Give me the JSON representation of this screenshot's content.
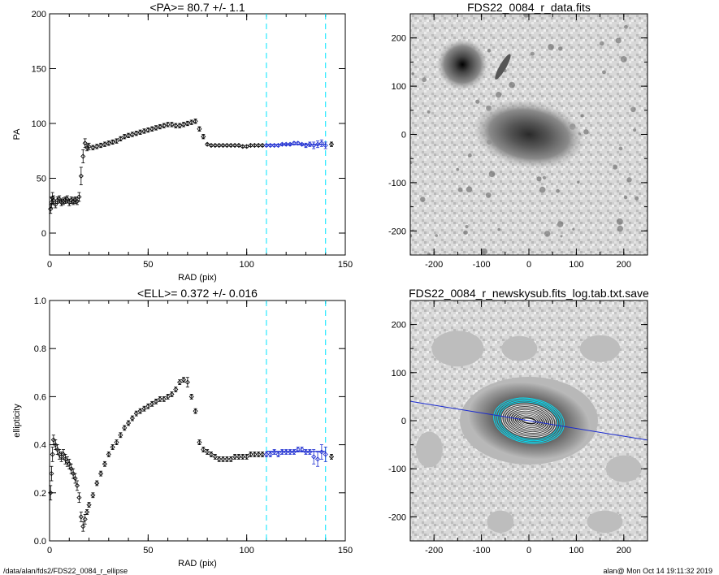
{
  "footer": {
    "left": "/data/alan/fds2/FDS22_0084_r_ellipse",
    "right": "alan@  Mon Oct 14 19:11:32 2019"
  },
  "colors": {
    "fit": "#1a2ad0",
    "marker": "#00e5ff",
    "data": "#000000"
  },
  "chart_data": [
    {
      "type": "scatter",
      "title": "<PA>=  80.7 +/-   1.1",
      "xlabel": "RAD (pix)",
      "ylabel": "PA",
      "xlim": [
        0,
        150
      ],
      "ylim": [
        -20,
        200
      ],
      "xticks": [
        0,
        50,
        100,
        150
      ],
      "yticks": [
        0,
        50,
        100,
        150,
        200
      ],
      "vlines": [
        110,
        140
      ],
      "fit": {
        "x": [
          110,
          140
        ],
        "y": [
          80.7,
          80.7
        ]
      },
      "series": [
        {
          "x": [
            0.5,
            1,
            1.5,
            2,
            3,
            4,
            5,
            6,
            7,
            8,
            9,
            10,
            11,
            12,
            13,
            14,
            15,
            16,
            17,
            18,
            19,
            20,
            22,
            24,
            26,
            28,
            30,
            32,
            34,
            36,
            38,
            40,
            42,
            44,
            46,
            48,
            50,
            52,
            54,
            56,
            58,
            60,
            62,
            64,
            66,
            68,
            70,
            72,
            74,
            76,
            78,
            80,
            82,
            84,
            86,
            88,
            90,
            92,
            94,
            96,
            98,
            100,
            102,
            104,
            106,
            108,
            110,
            112,
            114,
            116,
            118,
            120,
            122,
            124,
            126,
            128,
            130,
            132,
            134,
            136,
            138,
            140,
            143
          ],
          "y": [
            22,
            28,
            32,
            30,
            26,
            30,
            31,
            28,
            29,
            30,
            31,
            28,
            30,
            29,
            30,
            29,
            33,
            52,
            70,
            82,
            78,
            79,
            78,
            79,
            80,
            81,
            82,
            83,
            84,
            86,
            88,
            89,
            90,
            91,
            92,
            93,
            94,
            95,
            96,
            97,
            98,
            99,
            99,
            98,
            98,
            99,
            100,
            101,
            102,
            95,
            88,
            81,
            80,
            80,
            80,
            80,
            80,
            80,
            80,
            80,
            79,
            79,
            80,
            80,
            80,
            80,
            80,
            80,
            80,
            80,
            81,
            81,
            81,
            82,
            82,
            81,
            80,
            81,
            80,
            81,
            82,
            80,
            81
          ],
          "yerr": [
            4,
            5,
            5,
            4,
            3,
            3,
            3,
            3,
            3,
            3,
            3,
            3,
            3,
            3,
            3,
            3,
            4,
            8,
            6,
            4,
            3,
            3,
            2,
            2,
            2,
            2,
            2,
            2,
            2,
            2,
            2,
            2,
            2,
            2,
            2,
            2,
            2,
            2,
            2,
            2,
            2,
            2,
            2,
            2,
            2,
            2,
            2,
            2,
            2,
            2,
            2,
            1,
            1,
            1,
            1,
            1,
            1,
            1,
            1,
            1,
            1,
            1,
            1,
            1,
            1,
            1,
            1,
            1,
            1,
            1,
            1,
            1,
            1,
            1,
            1,
            1,
            2,
            2,
            3,
            3,
            3,
            3,
            2
          ]
        }
      ]
    },
    {
      "type": "scatter",
      "title": "<ELL>= 0.372 +/-  0.016",
      "xlabel": "RAD (pix)",
      "ylabel": "ellipticity",
      "xlim": [
        0,
        150
      ],
      "ylim": [
        0,
        1
      ],
      "xticks": [
        0,
        50,
        100,
        150
      ],
      "yticks": [
        0.0,
        0.2,
        0.4,
        0.6,
        0.8,
        1.0
      ],
      "vlines": [
        110,
        140
      ],
      "fit": {
        "x": [
          110,
          140
        ],
        "y": [
          0.372,
          0.372
        ]
      },
      "series": [
        {
          "x": [
            0.5,
            1,
            1.5,
            2,
            3,
            4,
            5,
            6,
            7,
            8,
            9,
            10,
            11,
            12,
            13,
            14,
            15,
            16,
            17,
            18,
            19,
            20,
            22,
            24,
            26,
            28,
            30,
            32,
            34,
            36,
            38,
            40,
            42,
            44,
            46,
            48,
            50,
            52,
            54,
            56,
            58,
            60,
            62,
            64,
            66,
            68,
            70,
            72,
            74,
            76,
            78,
            80,
            82,
            84,
            86,
            88,
            90,
            92,
            94,
            96,
            98,
            100,
            102,
            104,
            106,
            108,
            110,
            112,
            114,
            116,
            118,
            120,
            122,
            124,
            126,
            128,
            130,
            132,
            134,
            136,
            138,
            140,
            143
          ],
          "y": [
            0.2,
            0.28,
            0.36,
            0.42,
            0.4,
            0.38,
            0.36,
            0.35,
            0.36,
            0.34,
            0.33,
            0.32,
            0.3,
            0.28,
            0.26,
            0.23,
            0.18,
            0.1,
            0.06,
            0.09,
            0.12,
            0.15,
            0.19,
            0.24,
            0.28,
            0.32,
            0.36,
            0.39,
            0.41,
            0.44,
            0.47,
            0.49,
            0.51,
            0.53,
            0.54,
            0.55,
            0.56,
            0.57,
            0.58,
            0.59,
            0.59,
            0.6,
            0.61,
            0.63,
            0.66,
            0.67,
            0.66,
            0.6,
            0.54,
            0.41,
            0.38,
            0.37,
            0.36,
            0.35,
            0.34,
            0.34,
            0.34,
            0.34,
            0.35,
            0.35,
            0.35,
            0.35,
            0.36,
            0.36,
            0.36,
            0.36,
            0.36,
            0.36,
            0.37,
            0.36,
            0.37,
            0.37,
            0.37,
            0.37,
            0.38,
            0.38,
            0.37,
            0.37,
            0.35,
            0.34,
            0.37,
            0.36,
            0.35
          ],
          "yerr": [
            0.03,
            0.03,
            0.03,
            0.02,
            0.02,
            0.02,
            0.02,
            0.02,
            0.02,
            0.02,
            0.02,
            0.02,
            0.02,
            0.02,
            0.02,
            0.02,
            0.02,
            0.02,
            0.02,
            0.02,
            0.01,
            0.01,
            0.01,
            0.01,
            0.01,
            0.01,
            0.01,
            0.01,
            0.01,
            0.01,
            0.01,
            0.01,
            0.01,
            0.01,
            0.01,
            0.01,
            0.01,
            0.01,
            0.01,
            0.01,
            0.01,
            0.01,
            0.01,
            0.01,
            0.01,
            0.01,
            0.02,
            0.01,
            0.01,
            0.01,
            0.01,
            0.01,
            0.01,
            0.01,
            0.01,
            0.01,
            0.01,
            0.01,
            0.01,
            0.01,
            0.01,
            0.01,
            0.01,
            0.01,
            0.01,
            0.01,
            0.01,
            0.01,
            0.01,
            0.01,
            0.01,
            0.01,
            0.01,
            0.01,
            0.01,
            0.01,
            0.01,
            0.01,
            0.03,
            0.03,
            0.03,
            0.03,
            0.01
          ]
        }
      ]
    },
    {
      "type": "image",
      "title": "FDS22_0084_r_data.fits",
      "xlim": [
        -250,
        250
      ],
      "ylim": [
        -250,
        250
      ],
      "xticks": [
        -200,
        -100,
        0,
        100,
        200
      ],
      "yticks": [
        -200,
        -100,
        0,
        100,
        200
      ],
      "objects": [
        {
          "kind": "spiral galaxy",
          "x": 0,
          "y": 0
        },
        {
          "kind": "bright star",
          "x": -140,
          "y": 145
        },
        {
          "kind": "edge-on galaxy",
          "x": -55,
          "y": 140
        }
      ]
    },
    {
      "type": "image",
      "title": "FDS22_0084_r_newskysub.fits_log.tab.txt.save",
      "xlim": [
        -250,
        250
      ],
      "ylim": [
        -250,
        250
      ],
      "xticks": [
        -200,
        -100,
        0,
        100,
        200
      ],
      "yticks": [
        -200,
        -100,
        0,
        100,
        200
      ],
      "pa_line": {
        "angle_deg": 80.7
      },
      "isophotes": {
        "center": [
          0,
          0
        ],
        "max_sma": 140,
        "ellipticity": 0.372
      }
    }
  ]
}
